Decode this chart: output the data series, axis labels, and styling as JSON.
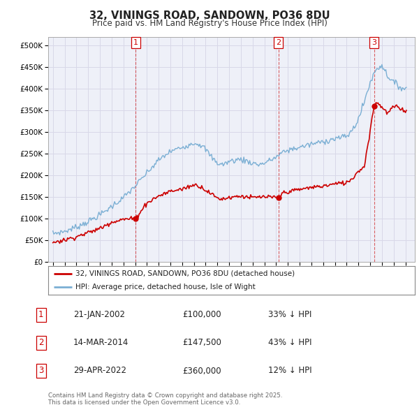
{
  "title": "32, VININGS ROAD, SANDOWN, PO36 8DU",
  "subtitle": "Price paid vs. HM Land Registry's House Price Index (HPI)",
  "hpi_label": "HPI: Average price, detached house, Isle of Wight",
  "price_label": "32, VININGS ROAD, SANDOWN, PO36 8DU (detached house)",
  "footer": "Contains HM Land Registry data © Crown copyright and database right 2025.\nThis data is licensed under the Open Government Licence v3.0.",
  "sale_events": [
    {
      "num": 1,
      "date": "21-JAN-2002",
      "price": 100000,
      "pct": "33% ↓ HPI",
      "year": 2002.05
    },
    {
      "num": 2,
      "date": "14-MAR-2014",
      "price": 147500,
      "pct": "43% ↓ HPI",
      "year": 2014.2
    },
    {
      "num": 3,
      "date": "29-APR-2022",
      "price": 360000,
      "pct": "12% ↓ HPI",
      "year": 2022.33
    }
  ],
  "hpi_color": "#7bafd4",
  "price_color": "#cc0000",
  "grid_color": "#d8d8e8",
  "bg_color": "#ffffff",
  "plot_bg": "#eef0f8",
  "ylim": [
    0,
    520000
  ],
  "yticks": [
    0,
    50000,
    100000,
    150000,
    200000,
    250000,
    300000,
    350000,
    400000,
    450000,
    500000
  ],
  "ytick_labels": [
    "£0",
    "£50K",
    "£100K",
    "£150K",
    "£200K",
    "£250K",
    "£300K",
    "£350K",
    "£400K",
    "£450K",
    "£500K"
  ],
  "xmin": 1994.6,
  "xmax": 2025.8
}
